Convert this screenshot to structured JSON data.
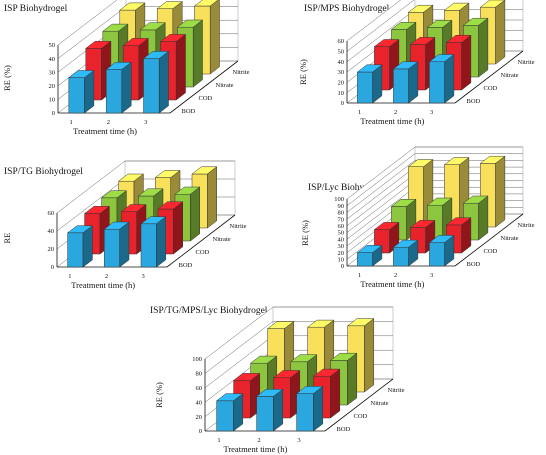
{
  "chart_data": [
    {
      "type": "bar",
      "title": "ISP Biohydrogel",
      "xlabel": "Treatment time (h)",
      "ylabel": "RE (%)",
      "categories": [
        "1",
        "2",
        "3"
      ],
      "ylim": [
        0,
        50
      ],
      "yticks": [
        "0",
        "10",
        "20",
        "30",
        "40",
        "50"
      ],
      "series": [
        {
          "name": "BOD",
          "values": [
            26,
            32,
            40
          ],
          "color": "#2aa7df"
        },
        {
          "name": "COD",
          "values": [
            38,
            40,
            43
          ],
          "color": "#e8232b"
        },
        {
          "name": "Nitrate",
          "values": [
            41,
            42,
            44
          ],
          "color": "#8cc63f"
        },
        {
          "name": "Nitrite",
          "values": [
            47,
            48,
            50
          ],
          "color": "#f9e05b"
        }
      ]
    },
    {
      "type": "bar",
      "title": "ISP/MPS Biohydrogel",
      "xlabel": "Treatment time (h)",
      "ylabel": "RE (%)",
      "categories": [
        "1",
        "2",
        "3"
      ],
      "ylim": [
        0,
        60
      ],
      "yticks": [
        "0",
        "10",
        "20",
        "30",
        "40",
        "50",
        "60"
      ],
      "series": [
        {
          "name": "BOD",
          "values": [
            30,
            33,
            40
          ],
          "color": "#2aa7df"
        },
        {
          "name": "COD",
          "values": [
            42,
            44,
            46
          ],
          "color": "#e8232b"
        },
        {
          "name": "Nitrate",
          "values": [
            46,
            48,
            50
          ],
          "color": "#8cc63f"
        },
        {
          "name": "Nitrite",
          "values": [
            50,
            52,
            55
          ],
          "color": "#f9e05b"
        }
      ]
    },
    {
      "type": "bar",
      "title": "ISP/TG Biohydrogel",
      "xlabel": "Treatment time (h)",
      "ylabel": "RE",
      "categories": [
        "1",
        "2",
        "3"
      ],
      "ylim": [
        0,
        60
      ],
      "yticks": [
        "0",
        "20",
        "40",
        "60"
      ],
      "series": [
        {
          "name": "BOD",
          "values": [
            38,
            42,
            48
          ],
          "color": "#2aa7df"
        },
        {
          "name": "COD",
          "values": [
            45,
            47,
            50
          ],
          "color": "#e8232b"
        },
        {
          "name": "Nitrate",
          "values": [
            48,
            50,
            52
          ],
          "color": "#8cc63f"
        },
        {
          "name": "Nitrite",
          "values": [
            52,
            56,
            60
          ],
          "color": "#f9e05b"
        }
      ]
    },
    {
      "type": "bar",
      "title": "ISP/Lyc Biohydrogel",
      "xlabel": "Treatment time (h)",
      "ylabel": "RE (%)",
      "categories": [
        "1",
        "2",
        "3"
      ],
      "ylim": [
        0,
        100
      ],
      "yticks": [
        "0",
        "10",
        "20",
        "30",
        "40",
        "50",
        "60",
        "70",
        "80",
        "90",
        "100"
      ],
      "series": [
        {
          "name": "BOD",
          "values": [
            20,
            28,
            35
          ],
          "color": "#2aa7df"
        },
        {
          "name": "COD",
          "values": [
            35,
            38,
            42
          ],
          "color": "#e8232b"
        },
        {
          "name": "Nitrate",
          "values": [
            50,
            52,
            55
          ],
          "color": "#8cc63f"
        },
        {
          "name": "Nitrite",
          "values": [
            90,
            93,
            95
          ],
          "color": "#f9e05b"
        }
      ]
    },
    {
      "type": "bar",
      "title": "ISP/TG/MPS/Lyc Biohydrogel",
      "xlabel": "Treatment time (h)",
      "ylabel": "RE (%)",
      "categories": [
        "1",
        "2",
        "3"
      ],
      "ylim": [
        0,
        100
      ],
      "yticks": [
        "0",
        "20",
        "40",
        "60",
        "80",
        "100"
      ],
      "series": [
        {
          "name": "BOD",
          "values": [
            42,
            48,
            52
          ],
          "color": "#2aa7df"
        },
        {
          "name": "COD",
          "values": [
            52,
            56,
            58
          ],
          "color": "#e8232b"
        },
        {
          "name": "Nitrate",
          "values": [
            58,
            60,
            62
          ],
          "color": "#8cc63f"
        },
        {
          "name": "Nitrite",
          "values": [
            88,
            90,
            92
          ],
          "color": "#f9e05b"
        }
      ]
    }
  ]
}
